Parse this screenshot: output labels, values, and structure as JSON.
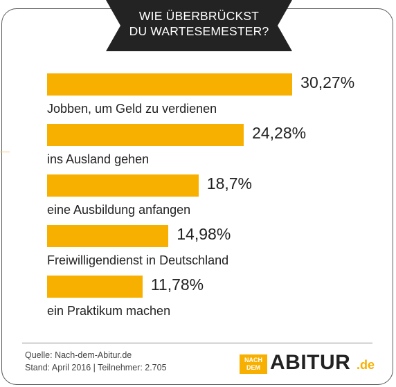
{
  "header": {
    "line1": "WIE ÜBERBRÜCKST",
    "line2": "DU WARTESEMESTER?"
  },
  "chart_data": {
    "type": "bar",
    "orientation": "horizontal",
    "title": "WIE ÜBERBRÜCKST DU WARTESEMESTER?",
    "categories": [
      "Jobben, um Geld zu verdienen",
      "ins Ausland gehen",
      "eine Ausbildung anfangen",
      "Freiwilligendienst in Deutschland",
      "ein Praktikum machen"
    ],
    "values": [
      30.27,
      24.28,
      18.7,
      14.98,
      11.78
    ],
    "value_labels": [
      "30,27%",
      "24,28%",
      "18,7%",
      "14,98%",
      "11,78%"
    ],
    "unit": "%",
    "bar_color": "#f8b000",
    "grid": false
  },
  "footer": {
    "source": "Quelle: Nach-dem-Abitur.de",
    "stand": "Stand: April 2016 | Teilnehmer: 2.705"
  },
  "logo": {
    "small_top": "NACH",
    "small_bottom": "DEM",
    "main": "ABITUR",
    "tld": ".de"
  },
  "colors": {
    "banner": "#232323",
    "accent": "#f8b000",
    "border": "#5a5a5a"
  }
}
